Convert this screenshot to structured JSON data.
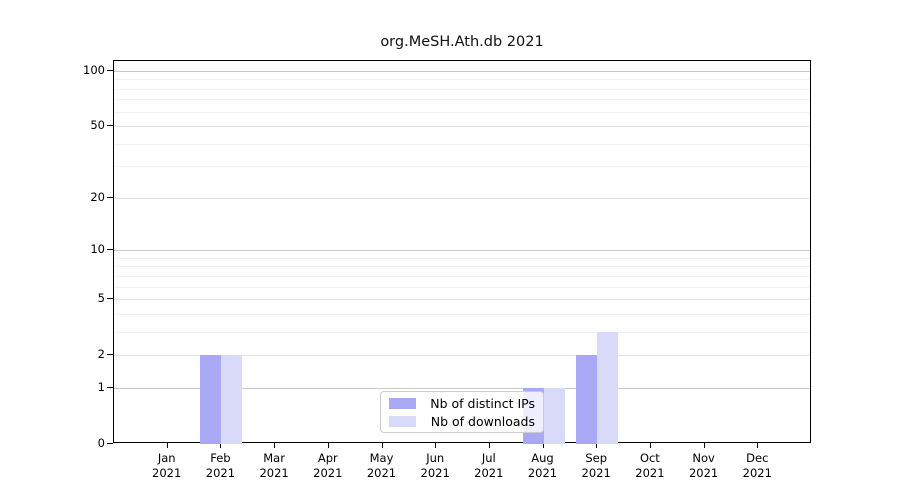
{
  "title": "org.MeSH.Ath.db 2021",
  "colors": {
    "distinct_ips": "#a8a8f5",
    "downloads": "#d9d9f8",
    "grid_decade": "#c9c9c9",
    "grid_major": "#e3e3e3",
    "grid_minor": "#f1f1f1",
    "axis": "#000000"
  },
  "legend": {
    "items": [
      {
        "label": "Nb of distinct IPs",
        "color_key": "distinct_ips"
      },
      {
        "label": "Nb of downloads",
        "color_key": "downloads"
      }
    ]
  },
  "chart_data": {
    "type": "bar",
    "title": "org.MeSH.Ath.db 2021",
    "categories": [
      "Jan",
      "Feb",
      "Mar",
      "Apr",
      "May",
      "Jun",
      "Jul",
      "Aug",
      "Sep",
      "Oct",
      "Nov",
      "Dec"
    ],
    "year_label": "2021",
    "series": [
      {
        "name": "Nb of distinct IPs",
        "color": "#a8a8f5",
        "values": [
          0,
          2,
          0,
          0,
          0,
          0,
          0,
          1,
          2,
          0,
          0,
          0
        ]
      },
      {
        "name": "Nb of downloads",
        "color": "#d9d9f8",
        "values": [
          0,
          2,
          0,
          0,
          0,
          0,
          0,
          1,
          3,
          0,
          0,
          0
        ]
      }
    ],
    "xlabel": "",
    "ylabel": "",
    "yscale": "log1p",
    "ylim": [
      0,
      113
    ],
    "y_ticks": [
      0,
      1,
      2,
      5,
      10,
      20,
      50,
      100
    ],
    "y_decade_ticks": [
      1,
      10,
      100
    ],
    "y_minor_ticks": [
      3,
      4,
      6,
      7,
      8,
      9,
      30,
      40,
      60,
      70,
      80,
      90
    ],
    "grid": true,
    "legend_position": "lower-center-inside"
  }
}
